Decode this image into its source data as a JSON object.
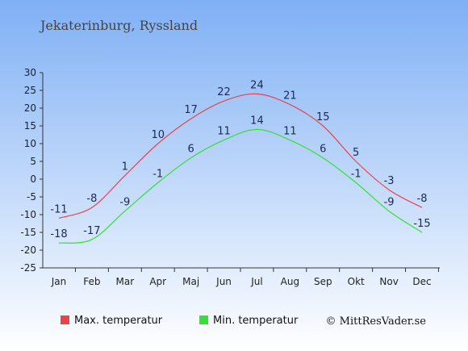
{
  "chart_data": {
    "type": "line",
    "title": "Jekaterinburg, Ryssland",
    "categories": [
      "Jan",
      "Feb",
      "Mar",
      "Apr",
      "Maj",
      "Jun",
      "Jul",
      "Aug",
      "Sep",
      "Okt",
      "Nov",
      "Dec"
    ],
    "series": [
      {
        "name": "Max. temperatur",
        "color": "#e8434a",
        "values": [
          -11,
          -8,
          1,
          10,
          17,
          22,
          24,
          21,
          15,
          5,
          -3,
          -8
        ]
      },
      {
        "name": "Min. temperatur",
        "color": "#33e033",
        "values": [
          -18,
          -17,
          -9,
          -1,
          6,
          11,
          14,
          11,
          6,
          -1,
          -9,
          -15
        ]
      }
    ],
    "ylim": [
      -25,
      30
    ],
    "yticks": [
      30,
      25,
      20,
      15,
      10,
      5,
      0,
      -5,
      -10,
      -15,
      -20,
      -25
    ],
    "grid": false,
    "legend": "bottom"
  },
  "credit": "© MittResVader.se",
  "colors": {
    "background_top": "#7fb0f5",
    "background_bottom": "#ffffff",
    "axis": "#333333"
  }
}
